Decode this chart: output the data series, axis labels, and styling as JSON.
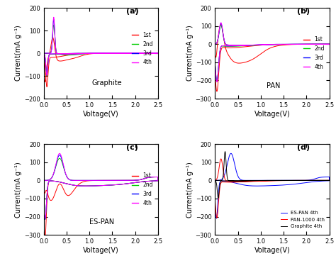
{
  "panels": [
    "(a)",
    "(b)",
    "(c)",
    "(d)"
  ],
  "labels": [
    "Graphite",
    "PAN",
    "ES-PAN",
    ""
  ],
  "legend_ab": [
    "1st",
    "2nd",
    "3rd",
    "4th"
  ],
  "legend_d": [
    "ES-PAN 4th",
    "PAN-1000 4th",
    "Graphite 4th"
  ],
  "colors_1234": [
    "#ff0000",
    "#00cc00",
    "#0000ff",
    "#ff00ff"
  ],
  "colors_d": [
    "#0000ff",
    "#ff0000",
    "#000000"
  ],
  "ylim_a": [
    -200,
    200
  ],
  "ylim_b": [
    -300,
    200
  ],
  "ylim_c": [
    -300,
    200
  ],
  "ylim_d": [
    -300,
    200
  ],
  "xlim": [
    0,
    2.5
  ],
  "xlabel": "Voltage(V)",
  "ylabel": "Current(mA g⁻¹)"
}
